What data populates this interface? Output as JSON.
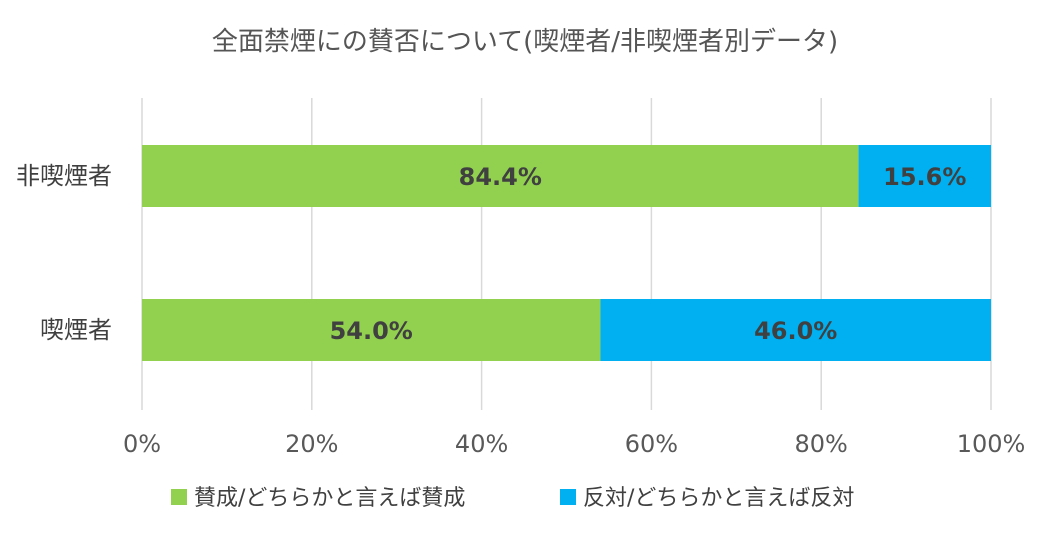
{
  "chart_data": {
    "type": "bar",
    "orientation": "horizontal",
    "stacked": "100%",
    "title": "全面禁煙にの賛否について(喫煙者/非喫煙者別データ)",
    "categories": [
      "非喫煙者",
      "喫煙者"
    ],
    "series": [
      {
        "name": "賛成/どちらかと言えば賛成",
        "values": [
          84.4,
          54.0
        ],
        "color": "#92d050",
        "labels": [
          "84.4%",
          "54.0%"
        ]
      },
      {
        "name": "反対/どちらかと言えば反対",
        "values": [
          15.6,
          46.0
        ],
        "color": "#00b0f0",
        "labels": [
          "15.6%",
          "46.0%"
        ]
      }
    ],
    "xlim": [
      0,
      100
    ],
    "x_ticks": [
      "0%",
      "20%",
      "40%",
      "60%",
      "80%",
      "100%"
    ],
    "grid": true,
    "legend_position": "bottom"
  }
}
